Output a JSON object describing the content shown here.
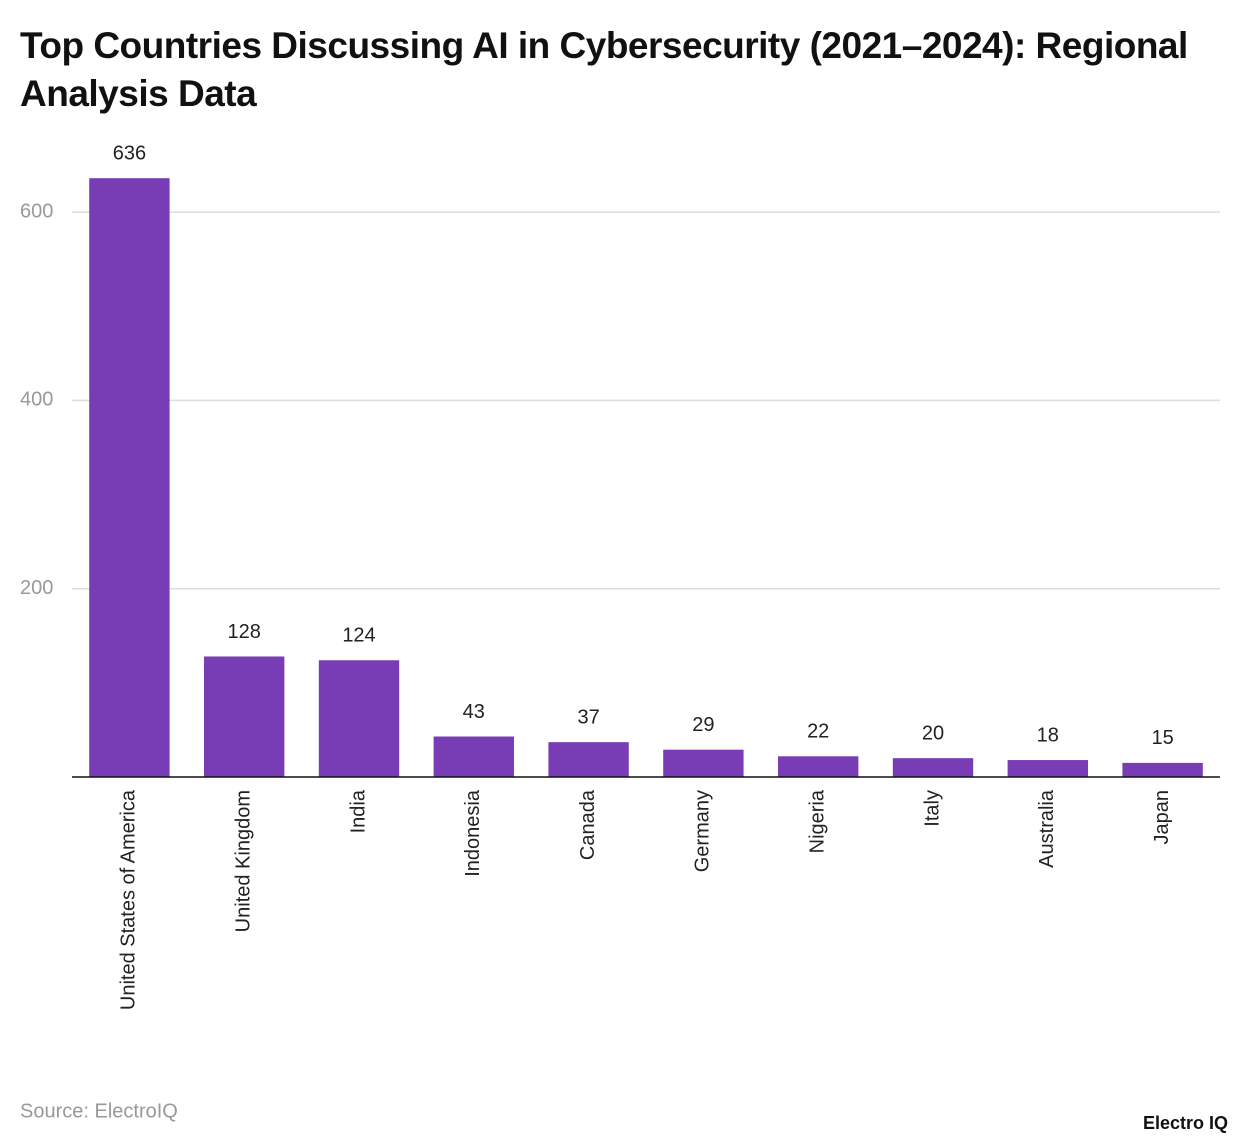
{
  "chart_data": {
    "type": "bar",
    "title": "Top Countries Discussing AI in Cybersecurity (2021–2024): Regional Analysis Data",
    "categories": [
      "United States of America",
      "United Kingdom",
      "India",
      "Indonesia",
      "Canada",
      "Germany",
      "Nigeria",
      "Italy",
      "Australia",
      "Japan"
    ],
    "values": [
      636,
      128,
      124,
      43,
      37,
      29,
      22,
      20,
      18,
      15
    ],
    "color": "#783cb4",
    "ylim": [
      0,
      650
    ],
    "yticks": [
      200,
      400,
      600
    ],
    "grid": true,
    "source": "Source: ElectroIQ",
    "brand": "Electro IQ"
  }
}
